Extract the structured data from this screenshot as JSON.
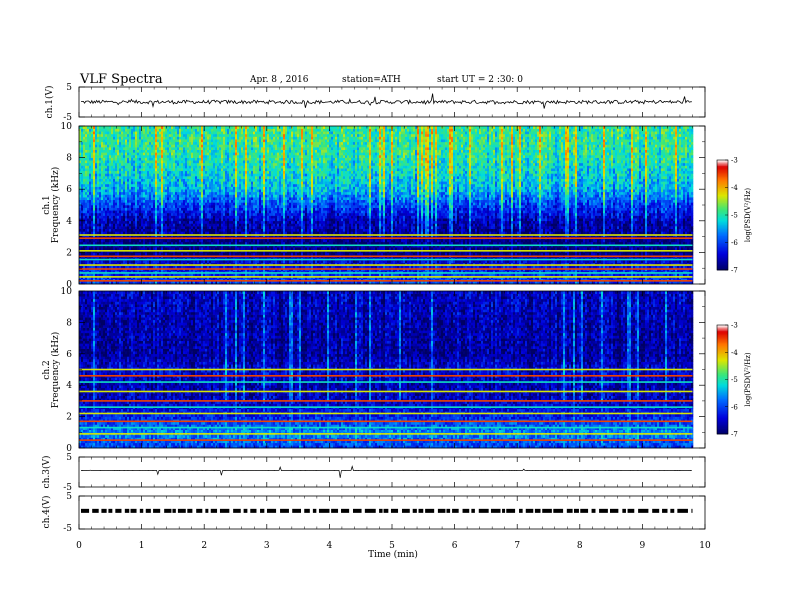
{
  "header": {
    "title": "VLF  Spectra",
    "date": "Apr. 8 , 2016",
    "station": "station=ATH",
    "start": "start  UT  =   2 :30: 0"
  },
  "x_axis": {
    "label": "Time  (min)",
    "ticks": [
      "0",
      "1",
      "2",
      "3",
      "4",
      "5",
      "6",
      "7",
      "8",
      "9",
      "10"
    ]
  },
  "chart_data": [
    {
      "type": "line",
      "panel": "ch1-voltage",
      "ylabel": "ch.1(V)",
      "xlim": [
        0,
        10
      ],
      "ylim": [
        -5,
        5
      ],
      "y_ticks": [
        "5",
        "-5"
      ],
      "data_end_min": 9.8,
      "series": [
        {
          "baseline": 0.0,
          "noise_amplitude": 0.6,
          "color": "#000000"
        }
      ]
    },
    {
      "type": "heatmap",
      "panel": "ch1-spectrogram",
      "ylabel": "ch.1",
      "ylabel2": "Frequency  (kHz)",
      "xlim": [
        0,
        10
      ],
      "ylim": [
        0,
        10
      ],
      "y_ticks": [
        "0",
        "2",
        "4",
        "6",
        "8",
        "10"
      ],
      "data_end_min": 9.8,
      "colorbar": {
        "label": "log(PSD(V²/Hz)",
        "range": [
          -7,
          -3
        ],
        "ticks": [
          "-3",
          "-4",
          "-5",
          "-6",
          "-7"
        ]
      },
      "profile_log_psd": [
        {
          "freq_khz": 0.0,
          "value": -6.0
        },
        {
          "freq_khz": 1.0,
          "value": -6.2
        },
        {
          "freq_khz": 2.0,
          "value": -6.9
        },
        {
          "freq_khz": 3.0,
          "value": -6.8
        },
        {
          "freq_khz": 4.0,
          "value": -6.6
        },
        {
          "freq_khz": 5.0,
          "value": -6.0
        },
        {
          "freq_khz": 6.0,
          "value": -5.4
        },
        {
          "freq_khz": 8.0,
          "value": -5.0
        },
        {
          "freq_khz": 10.0,
          "value": -4.9
        }
      ],
      "narrowband_lines_khz": [
        0.2,
        0.45,
        0.7,
        0.95,
        1.2,
        1.55,
        1.75,
        2.1,
        2.45,
        2.9,
        3.1
      ]
    },
    {
      "type": "heatmap",
      "panel": "ch2-spectrogram",
      "ylabel": "ch.2",
      "ylabel2": "Frequency  (kHz)",
      "xlim": [
        0,
        10
      ],
      "ylim": [
        0,
        10
      ],
      "y_ticks": [
        "0",
        "2",
        "4",
        "6",
        "8",
        "10"
      ],
      "data_end_min": 9.8,
      "colorbar": {
        "label": "log(PSD(V²/Hz)",
        "range": [
          -7,
          -3
        ],
        "ticks": [
          "-3",
          "-4",
          "-5",
          "-6",
          "-7"
        ]
      },
      "profile_log_psd": [
        {
          "freq_khz": 0.0,
          "value": -6.0
        },
        {
          "freq_khz": 1.0,
          "value": -5.6
        },
        {
          "freq_khz": 2.0,
          "value": -6.2
        },
        {
          "freq_khz": 3.0,
          "value": -6.5
        },
        {
          "freq_khz": 4.0,
          "value": -6.6
        },
        {
          "freq_khz": 5.0,
          "value": -6.4
        },
        {
          "freq_khz": 6.0,
          "value": -6.7
        },
        {
          "freq_khz": 8.0,
          "value": -6.6
        },
        {
          "freq_khz": 10.0,
          "value": -6.5
        }
      ],
      "narrowband_lines_khz": [
        0.5,
        0.9,
        1.3,
        1.7,
        2.2,
        2.6,
        3.0,
        3.6,
        4.2,
        4.6,
        5.0
      ]
    },
    {
      "type": "line",
      "panel": "ch3-voltage",
      "ylabel": "ch.3(V)",
      "xlim": [
        0,
        10
      ],
      "ylim": [
        -5,
        5
      ],
      "y_ticks": [
        "5",
        "-5"
      ],
      "data_end_min": 9.8,
      "series": [
        {
          "baseline": 0.5,
          "noise_amplitude": 0.05,
          "color": "#000000"
        }
      ]
    },
    {
      "type": "line",
      "panel": "ch4-voltage",
      "ylabel": "ch.4(V)",
      "xlim": [
        0,
        10
      ],
      "ylim": [
        -5,
        5
      ],
      "y_ticks": [
        "5",
        "-5"
      ],
      "data_end_min": 9.8,
      "series": [
        {
          "baseline": 0.5,
          "noise_amplitude": 0.3,
          "color": "#000000"
        }
      ]
    }
  ]
}
